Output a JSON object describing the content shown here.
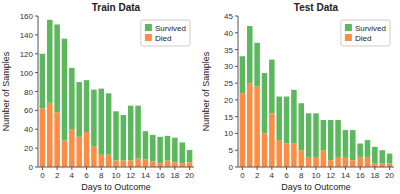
{
  "chart_data": [
    {
      "type": "bar",
      "stacked": true,
      "title": "Train Data",
      "x_label": "Days to Outcome",
      "y_label": "Number of Samples",
      "x": [
        0,
        1,
        2,
        3,
        4,
        5,
        6,
        7,
        8,
        9,
        10,
        11,
        12,
        13,
        14,
        15,
        16,
        17,
        18,
        19,
        20
      ],
      "series": [
        {
          "name": "Died",
          "color": "#ff8c42",
          "values": [
            62,
            68,
            58,
            28,
            40,
            32,
            37,
            22,
            13,
            13,
            7,
            7,
            7,
            9,
            8,
            6,
            4,
            7,
            5,
            4,
            5
          ]
        },
        {
          "name": "Survived",
          "color": "#5cb85c",
          "values": [
            58,
            88,
            93,
            108,
            65,
            58,
            55,
            60,
            70,
            65,
            52,
            48,
            58,
            56,
            30,
            28,
            28,
            26,
            26,
            22,
            13
          ]
        }
      ],
      "xlim": [
        -0.6,
        20.6
      ],
      "xticks": [
        0,
        2,
        4,
        6,
        8,
        10,
        12,
        14,
        16,
        18,
        20
      ],
      "ylim": [
        0,
        160
      ],
      "yticks": [
        0,
        20,
        40,
        60,
        80,
        100,
        120,
        140,
        160
      ],
      "grid": false,
      "legend": "upper right"
    },
    {
      "type": "bar",
      "stacked": true,
      "title": "Test Data",
      "x_label": "Days to Outcome",
      "y_label": "Number of Samples",
      "x": [
        0,
        1,
        2,
        3,
        4,
        5,
        6,
        7,
        8,
        9,
        10,
        11,
        12,
        13,
        14,
        15,
        16,
        17,
        18,
        19,
        20
      ],
      "series": [
        {
          "name": "Died",
          "color": "#ff8c42",
          "values": [
            22,
            25,
            24,
            10,
            16,
            8,
            7,
            7,
            5,
            3,
            3,
            5,
            2,
            3,
            3,
            2,
            3,
            3,
            1,
            1,
            1
          ]
        },
        {
          "name": "Survived",
          "color": "#5cb85c",
          "values": [
            11,
            17,
            13,
            18,
            16,
            13,
            14,
            16,
            14,
            13,
            13,
            9,
            12,
            11,
            8,
            9,
            4,
            5,
            5,
            4,
            3
          ]
        }
      ],
      "xlim": [
        -0.6,
        20.6
      ],
      "xticks": [
        0,
        2,
        4,
        6,
        8,
        10,
        12,
        14,
        16,
        18,
        20
      ],
      "ylim": [
        0,
        45
      ],
      "yticks": [
        0,
        5,
        10,
        15,
        20,
        25,
        30,
        35,
        40,
        45
      ],
      "grid": false,
      "legend": "upper right"
    }
  ]
}
